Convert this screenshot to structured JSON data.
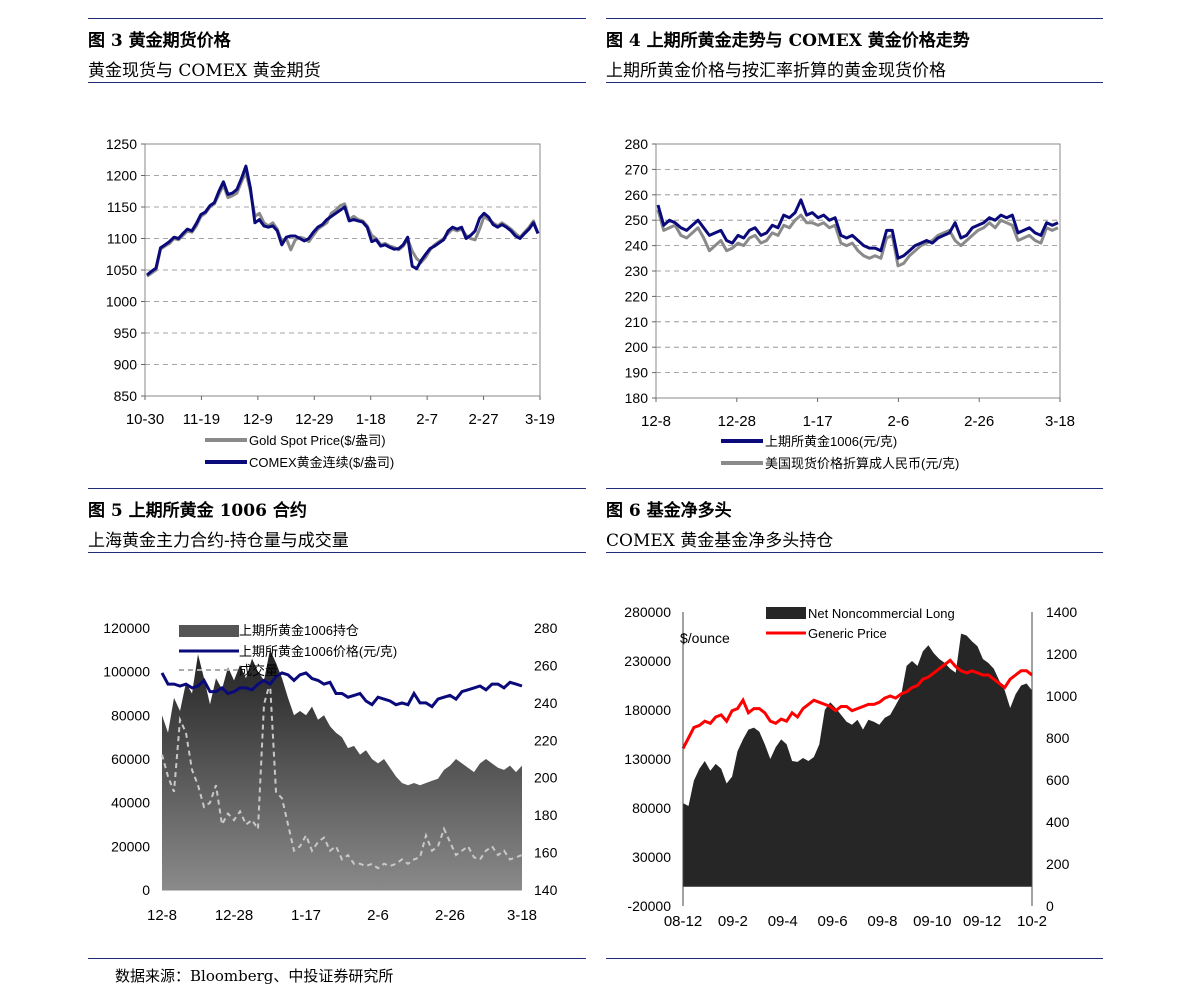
{
  "panels": [
    {
      "title": "图 3  黄金期货价格",
      "subtitle": "黄金现货与 COMEX 黄金期货"
    },
    {
      "title": "图 4  上期所黄金走势与 COMEX 黄金价格走势",
      "subtitle": "上期所黄金价格与按汇率折算的黄金现货价格"
    },
    {
      "title": "图 5  上期所黄金 1006 合约",
      "subtitle": "上海黄金主力合约-持仓量与成交量"
    },
    {
      "title": "图 6  基金净多头",
      "subtitle": "COMEX 黄金基金净多头持仓"
    }
  ],
  "source": "数据来源：Bloomberg、中投证券研究所",
  "colors": {
    "rule": "#1f2a78",
    "navy": "#0a0a7a",
    "gray": "#8a8a8a",
    "red": "#ff0000",
    "dark": "#222222"
  },
  "chart_data": [
    {
      "type": "line",
      "ylim": [
        850,
        1250
      ],
      "yticks": [
        850,
        900,
        950,
        1000,
        1050,
        1100,
        1150,
        1200,
        1250
      ],
      "xticks": [
        "10-30",
        "11-19",
        "12-9",
        "12-29",
        "1-18",
        "2-7",
        "2-27",
        "3-19"
      ],
      "grid": true,
      "legend_position": "bottom",
      "series": [
        {
          "name": "Gold Spot Price($/盎司)",
          "color": "#8a8a8a",
          "values": [
            1040,
            1045,
            1050,
            1083,
            1088,
            1092,
            1100,
            1098,
            1105,
            1112,
            1110,
            1120,
            1135,
            1140,
            1150,
            1155,
            1170,
            1185,
            1165,
            1168,
            1172,
            1190,
            1205,
            1175,
            1135,
            1140,
            1125,
            1120,
            1125,
            1115,
            1095,
            1100,
            1082,
            1098,
            1102,
            1100,
            1095,
            1105,
            1115,
            1120,
            1125,
            1140,
            1145,
            1152,
            1155,
            1130,
            1135,
            1130,
            1128,
            1120,
            1105,
            1100,
            1090,
            1092,
            1088,
            1086,
            1082,
            1088,
            1099,
            1080,
            1068,
            1062,
            1070,
            1082,
            1090,
            1095,
            1100,
            1108,
            1115,
            1112,
            1115,
            1105,
            1100,
            1098,
            1115,
            1135,
            1130,
            1125,
            1120,
            1125,
            1120,
            1115,
            1108,
            1102,
            1110,
            1118,
            1128,
            1108
          ]
        },
        {
          "name": "COMEX黄金连续($/盎司)",
          "color": "#0a0a7a",
          "values": [
            1042,
            1048,
            1053,
            1085,
            1090,
            1095,
            1102,
            1100,
            1108,
            1115,
            1112,
            1124,
            1138,
            1142,
            1152,
            1157,
            1175,
            1190,
            1170,
            1172,
            1178,
            1195,
            1215,
            1180,
            1125,
            1130,
            1120,
            1118,
            1120,
            1112,
            1090,
            1102,
            1104,
            1104,
            1100,
            1096,
            1100,
            1110,
            1118,
            1122,
            1130,
            1135,
            1140,
            1145,
            1150,
            1128,
            1130,
            1128,
            1126,
            1118,
            1095,
            1098,
            1088,
            1090,
            1086,
            1083,
            1084,
            1090,
            1102,
            1056,
            1052,
            1065,
            1075,
            1084,
            1088,
            1093,
            1098,
            1112,
            1118,
            1115,
            1118,
            1100,
            1105,
            1112,
            1132,
            1140,
            1134,
            1122,
            1118,
            1122,
            1118,
            1112,
            1104,
            1100,
            1108,
            1115,
            1125,
            1108
          ]
        }
      ]
    },
    {
      "type": "line",
      "ylim": [
        180,
        280
      ],
      "yticks": [
        180,
        190,
        200,
        210,
        220,
        230,
        240,
        250,
        260,
        270,
        280
      ],
      "xticks": [
        "12-8",
        "12-28",
        "1-17",
        "2-6",
        "2-26",
        "3-18"
      ],
      "grid": true,
      "legend_position": "bottom",
      "series": [
        {
          "name": "上期所黄金1006(元/克)",
          "color": "#0a0a7a",
          "values": [
            256,
            248,
            250,
            249,
            247,
            246,
            248,
            250,
            247,
            244,
            245,
            246,
            242,
            241,
            244,
            243,
            246,
            247,
            244,
            245,
            248,
            247,
            252,
            251,
            253,
            258,
            252,
            253,
            251,
            252,
            250,
            251,
            244,
            243,
            244,
            242,
            240,
            239,
            239,
            238,
            246,
            246,
            235,
            236,
            238,
            240,
            241,
            242,
            241,
            243,
            244,
            245,
            249,
            243,
            244,
            247,
            248,
            249,
            251,
            250,
            252,
            251,
            252,
            245,
            246,
            247,
            245,
            244,
            249,
            248,
            249
          ]
        },
        {
          "name": "美国现货价格折算成人民币(元/克)",
          "color": "#8a8a8a",
          "values": [
            254,
            246,
            247,
            248,
            244,
            243,
            245,
            247,
            243,
            238,
            240,
            242,
            238,
            239,
            241,
            240,
            243,
            244,
            241,
            242,
            245,
            244,
            248,
            247,
            250,
            252,
            249,
            249,
            248,
            249,
            247,
            248,
            241,
            240,
            241,
            238,
            236,
            235,
            236,
            235,
            243,
            244,
            232,
            233,
            236,
            238,
            240,
            241,
            242,
            244,
            245,
            246,
            242,
            240,
            242,
            244,
            246,
            247,
            249,
            247,
            250,
            249,
            248,
            242,
            243,
            244,
            242,
            241,
            247,
            246,
            247
          ]
        }
      ]
    },
    {
      "type": "area",
      "ylim": [
        0,
        120000
      ],
      "yticks": [
        0,
        20000,
        40000,
        60000,
        80000,
        100000,
        120000
      ],
      "y2lim": [
        140,
        280
      ],
      "y2ticks": [
        140,
        160,
        180,
        200,
        220,
        240,
        260,
        280
      ],
      "xticks": [
        "12-8",
        "12-28",
        "1-17",
        "2-6",
        "2-26",
        "3-18"
      ],
      "legend_position": "top-left",
      "series": [
        {
          "name": "上期所黄金1006持仓",
          "kind": "area",
          "axis": "left",
          "values": [
            80000,
            72000,
            88000,
            82000,
            95000,
            90000,
            108000,
            97000,
            85000,
            97000,
            92000,
            102000,
            96000,
            103000,
            97000,
            106000,
            100000,
            96000,
            110000,
            104000,
            97000,
            88000,
            80000,
            82000,
            80000,
            84000,
            78000,
            80000,
            75000,
            72000,
            70000,
            65000,
            66000,
            62000,
            64000,
            60000,
            58000,
            60000,
            56000,
            52000,
            49000,
            48000,
            49000,
            48000,
            49000,
            50000,
            51000,
            55000,
            57000,
            60000,
            58000,
            56000,
            54000,
            58000,
            60000,
            58000,
            56000,
            55000,
            57000,
            54000,
            57000
          ]
        },
        {
          "name": "上期所黄金1006价格(元/克)",
          "kind": "line",
          "axis": "right",
          "values": [
            256,
            250,
            250,
            249,
            250,
            248,
            249,
            252,
            246,
            246,
            248,
            245,
            246,
            248,
            248,
            247,
            250,
            252,
            250,
            254,
            256,
            255,
            252,
            255,
            256,
            253,
            252,
            250,
            251,
            245,
            245,
            243,
            244,
            245,
            241,
            239,
            243,
            242,
            241,
            239,
            240,
            239,
            245,
            240,
            240,
            238,
            242,
            243,
            244,
            242,
            246,
            247,
            248,
            249,
            247,
            250,
            250,
            248,
            251,
            250,
            249
          ]
        },
        {
          "name": "成交量",
          "kind": "dashed",
          "axis": "left",
          "values": [
            62000,
            52000,
            45000,
            78000,
            72000,
            55000,
            48000,
            38000,
            40000,
            48000,
            30000,
            35000,
            32000,
            36000,
            30000,
            32000,
            28000,
            85000,
            95000,
            45000,
            42000,
            30000,
            18000,
            20000,
            25000,
            18000,
            22000,
            24000,
            18000,
            20000,
            14000,
            16000,
            12000,
            12000,
            11000,
            12000,
            10000,
            12000,
            11000,
            12000,
            14000,
            12000,
            14000,
            15000,
            25000,
            18000,
            20000,
            28000,
            22000,
            16000,
            18000,
            20000,
            15000,
            14000,
            18000,
            20000,
            16000,
            18000,
            14000,
            15000,
            16000
          ]
        }
      ]
    },
    {
      "type": "area",
      "ylim": [
        -20000,
        280000
      ],
      "yticks": [
        -20000,
        30000,
        80000,
        130000,
        180000,
        230000,
        280000
      ],
      "y2lim": [
        0,
        1400
      ],
      "y2ticks": [
        0,
        200,
        400,
        600,
        800,
        1000,
        1200,
        1400
      ],
      "xticks": [
        "08-12",
        "09-2",
        "09-4",
        "09-6",
        "09-8",
        "09-10",
        "09-12",
        "10-2"
      ],
      "ylabel_right": "$/ounce",
      "legend_position": "top",
      "series": [
        {
          "name": "Net Noncommercial Long",
          "kind": "area",
          "axis": "left",
          "values": [
            85000,
            82000,
            108000,
            120000,
            128000,
            118000,
            125000,
            120000,
            105000,
            112000,
            138000,
            150000,
            160000,
            162000,
            158000,
            145000,
            130000,
            142000,
            150000,
            145000,
            128000,
            127000,
            131000,
            128000,
            132000,
            145000,
            180000,
            188000,
            182000,
            175000,
            168000,
            165000,
            170000,
            160000,
            170000,
            168000,
            165000,
            172000,
            175000,
            185000,
            195000,
            225000,
            230000,
            225000,
            240000,
            246000,
            238000,
            232000,
            228000,
            222000,
            218000,
            258000,
            256000,
            250000,
            245000,
            232000,
            228000,
            222000,
            210000,
            200000,
            182000,
            196000,
            205000,
            207000,
            200000
          ]
        },
        {
          "name": "Generic Price",
          "kind": "line",
          "axis": "right",
          "values": [
            750,
            800,
            850,
            860,
            880,
            870,
            900,
            910,
            880,
            930,
            940,
            980,
            920,
            940,
            940,
            920,
            880,
            870,
            890,
            880,
            920,
            900,
            940,
            960,
            980,
            970,
            960,
            950,
            930,
            950,
            950,
            930,
            940,
            950,
            960,
            960,
            970,
            990,
            1000,
            990,
            1010,
            1020,
            1040,
            1050,
            1080,
            1090,
            1110,
            1130,
            1150,
            1170,
            1140,
            1120,
            1110,
            1120,
            1110,
            1100,
            1100,
            1080,
            1060,
            1040,
            1080,
            1100,
            1120,
            1120,
            1100
          ]
        }
      ]
    }
  ]
}
